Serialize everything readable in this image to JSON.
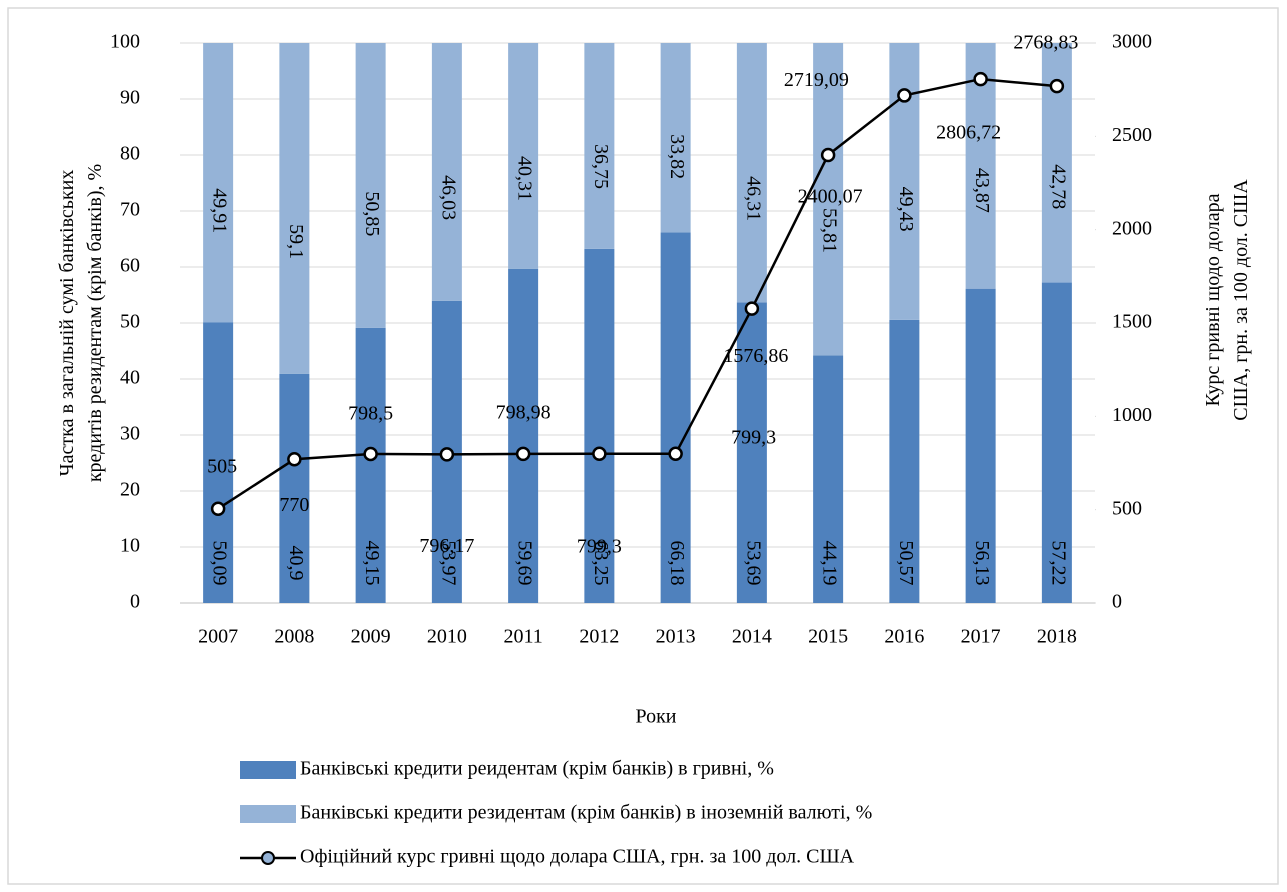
{
  "chart_data": {
    "type": "bar",
    "categories": [
      "2007",
      "2008",
      "2009",
      "2010",
      "2011",
      "2012",
      "2013",
      "2014",
      "2015",
      "2016",
      "2017",
      "2018"
    ],
    "series": [
      {
        "name": "Банківські кредити реидентам (крім банків) в гривні, %",
        "color": "#4f81bd",
        "type": "bar",
        "values": [
          50.09,
          40.9,
          49.15,
          53.97,
          59.69,
          63.25,
          66.18,
          53.69,
          44.19,
          50.57,
          56.13,
          57.22
        ],
        "value_labels": [
          "50,09",
          "40,9",
          "49,15",
          "53,97",
          "59,69",
          "63,25",
          "66,18",
          "53,69",
          "44,19",
          "50,57",
          "56,13",
          "57,22"
        ]
      },
      {
        "name": "Банківські кредити резидентам (крім банків) в іноземній валюті, %",
        "color": "#95b3d7",
        "type": "bar",
        "values": [
          49.91,
          59.1,
          50.85,
          46.03,
          40.31,
          36.75,
          33.82,
          46.31,
          55.81,
          49.43,
          43.87,
          42.78
        ],
        "value_labels": [
          "49,91",
          "59,1",
          "50,85",
          "46,03",
          "40,31",
          "36,75",
          "33,82",
          "46,31",
          "55,81",
          "49,43",
          "43,87",
          "42,78"
        ]
      },
      {
        "name": "Офіційний курс гривні щодо долара США, грн. за 100 дол. США",
        "color": "#000000",
        "type": "line",
        "axis": "y2",
        "values": [
          505,
          770,
          798.5,
          796.17,
          798.98,
          799.3,
          799.3,
          1576.86,
          2400.07,
          2719.09,
          2806.72,
          2768.83
        ],
        "value_labels": [
          "505",
          "770",
          "798,5",
          "796,17",
          "798,98",
          "799,3",
          "799,3",
          "1576,86",
          "2400,07",
          "2719,09",
          "2806,72",
          "2768,83"
        ]
      }
    ],
    "stacked": true,
    "ylabel": "Частка в загальній сумі банківських кредитів резидентам (крім банків), %",
    "y2label": "Курс гривні щодо долара США, грн. за 100 дол. США",
    "xlabel": "Роки",
    "ylim": [
      0,
      100
    ],
    "yticks": [
      0,
      10,
      20,
      30,
      40,
      50,
      60,
      70,
      80,
      90,
      100
    ],
    "y2lim": [
      0,
      3000
    ],
    "y2ticks": [
      0,
      500,
      1000,
      1500,
      2000,
      2500,
      3000
    ],
    "grid": true,
    "legend": "bottom"
  }
}
